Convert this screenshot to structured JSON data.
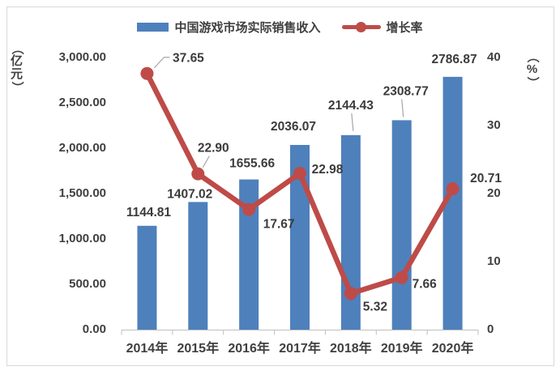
{
  "legend": {
    "bar_label": "中国游戏市场实际销售收入",
    "line_label": "增长率"
  },
  "axes": {
    "left": {
      "title": "（亿元）",
      "ticks": [
        "3,000.00",
        "2,500.00",
        "2,000.00",
        "1,500.00",
        "1,000.00",
        "500.00",
        "0.00"
      ]
    },
    "right": {
      "title": "（%）",
      "ticks": [
        "40",
        "30",
        "20",
        "10",
        "0"
      ]
    },
    "x": {
      "categories": [
        "2014年",
        "2015年",
        "2016年",
        "2017年",
        "2018年",
        "2019年",
        "2020年"
      ]
    }
  },
  "colors": {
    "bar": "#4e80bc",
    "line": "#be4b48",
    "data_label": "#3b3b3b",
    "axis_line": "#bfbfbf",
    "leader_line": "#a6a6a6",
    "text": "#404040",
    "frame_border": "#d9d9d9"
  },
  "chart_data": {
    "type": "bar",
    "subtype": "combo-bar-line",
    "title": "",
    "categories": [
      "2014年",
      "2015年",
      "2016年",
      "2017年",
      "2018年",
      "2019年",
      "2020年"
    ],
    "series": [
      {
        "name": "中国游戏市场实际销售收入",
        "type": "bar",
        "axis": "left",
        "values": [
          1144.81,
          1407.02,
          1655.66,
          2036.07,
          2144.43,
          2308.77,
          2786.87
        ],
        "color": "#4e80bc"
      },
      {
        "name": "增长率",
        "type": "line",
        "axis": "right",
        "values": [
          37.65,
          22.9,
          17.67,
          22.98,
          5.32,
          7.66,
          20.71
        ],
        "color": "#be4b48"
      }
    ],
    "left_axis": {
      "label": "（亿元）",
      "range": [
        0,
        3000
      ],
      "tick_step": 500
    },
    "right_axis": {
      "label": "（%）",
      "range": [
        0,
        40
      ],
      "tick_step": 10
    },
    "grid": false,
    "legend_position": "top",
    "data_labels": true
  }
}
